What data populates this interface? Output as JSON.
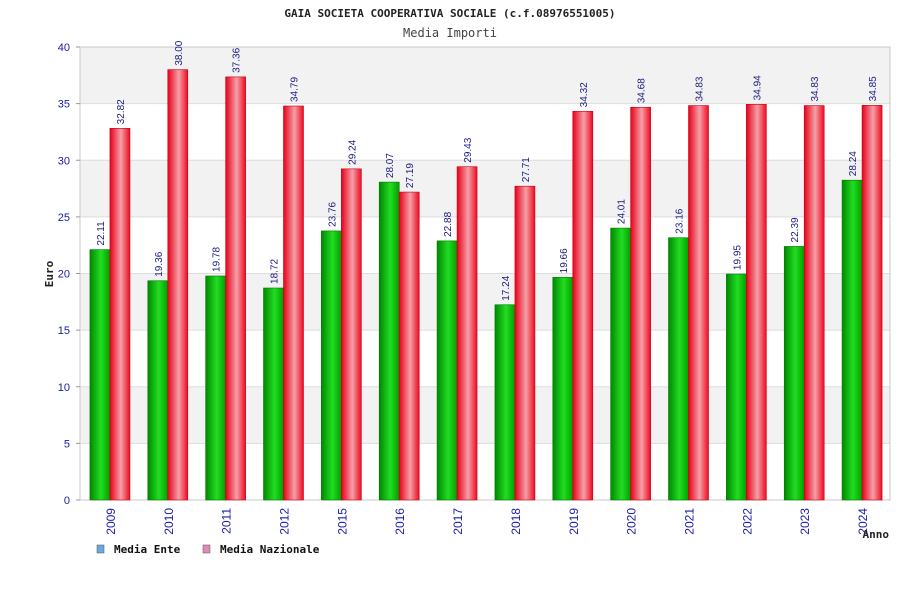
{
  "chart_data": {
    "type": "bar",
    "title": "GAIA SOCIETA COOPERATIVA SOCIALE (c.f.08976551005)",
    "subtitle": "Media Importi",
    "xlabel": "Anno",
    "ylabel": "Euro",
    "ylim": [
      0,
      40
    ],
    "yticks": [
      0,
      5,
      10,
      15,
      20,
      25,
      30,
      35,
      40
    ],
    "grid": true,
    "legend_position": "bottom-left",
    "categories": [
      "2009",
      "2010",
      "2011",
      "2012",
      "2015",
      "2016",
      "2017",
      "2018",
      "2019",
      "2020",
      "2021",
      "2022",
      "2023",
      "2024"
    ],
    "series": [
      {
        "name": "Media Ente",
        "legend_color": "#6aa8e0",
        "bar_color": "#18c818",
        "values": [
          22.11,
          19.36,
          19.78,
          18.72,
          23.76,
          28.07,
          22.88,
          17.24,
          19.66,
          24.01,
          23.16,
          19.95,
          22.39,
          28.24
        ],
        "labels": [
          "22.11",
          "19.36",
          "19.78",
          "18.72",
          "23.76",
          "28.07",
          "22.88",
          "17.24",
          "19.66",
          "24.01",
          "23.16",
          "19.95",
          "22.39",
          "28.24"
        ]
      },
      {
        "name": "Media Nazionale",
        "legend_color": "#e08ab8",
        "bar_color": "#f01828",
        "values": [
          32.82,
          38.0,
          37.36,
          34.79,
          29.24,
          27.19,
          29.43,
          27.71,
          34.32,
          34.68,
          34.83,
          34.94,
          34.83,
          34.85
        ],
        "labels": [
          "32.82",
          "38.00",
          "37.36",
          "34.79",
          "29.24",
          "27.19",
          "29.43",
          "27.71",
          "34.32",
          "34.68",
          "34.83",
          "34.94",
          "34.83",
          "34.85"
        ]
      }
    ]
  }
}
